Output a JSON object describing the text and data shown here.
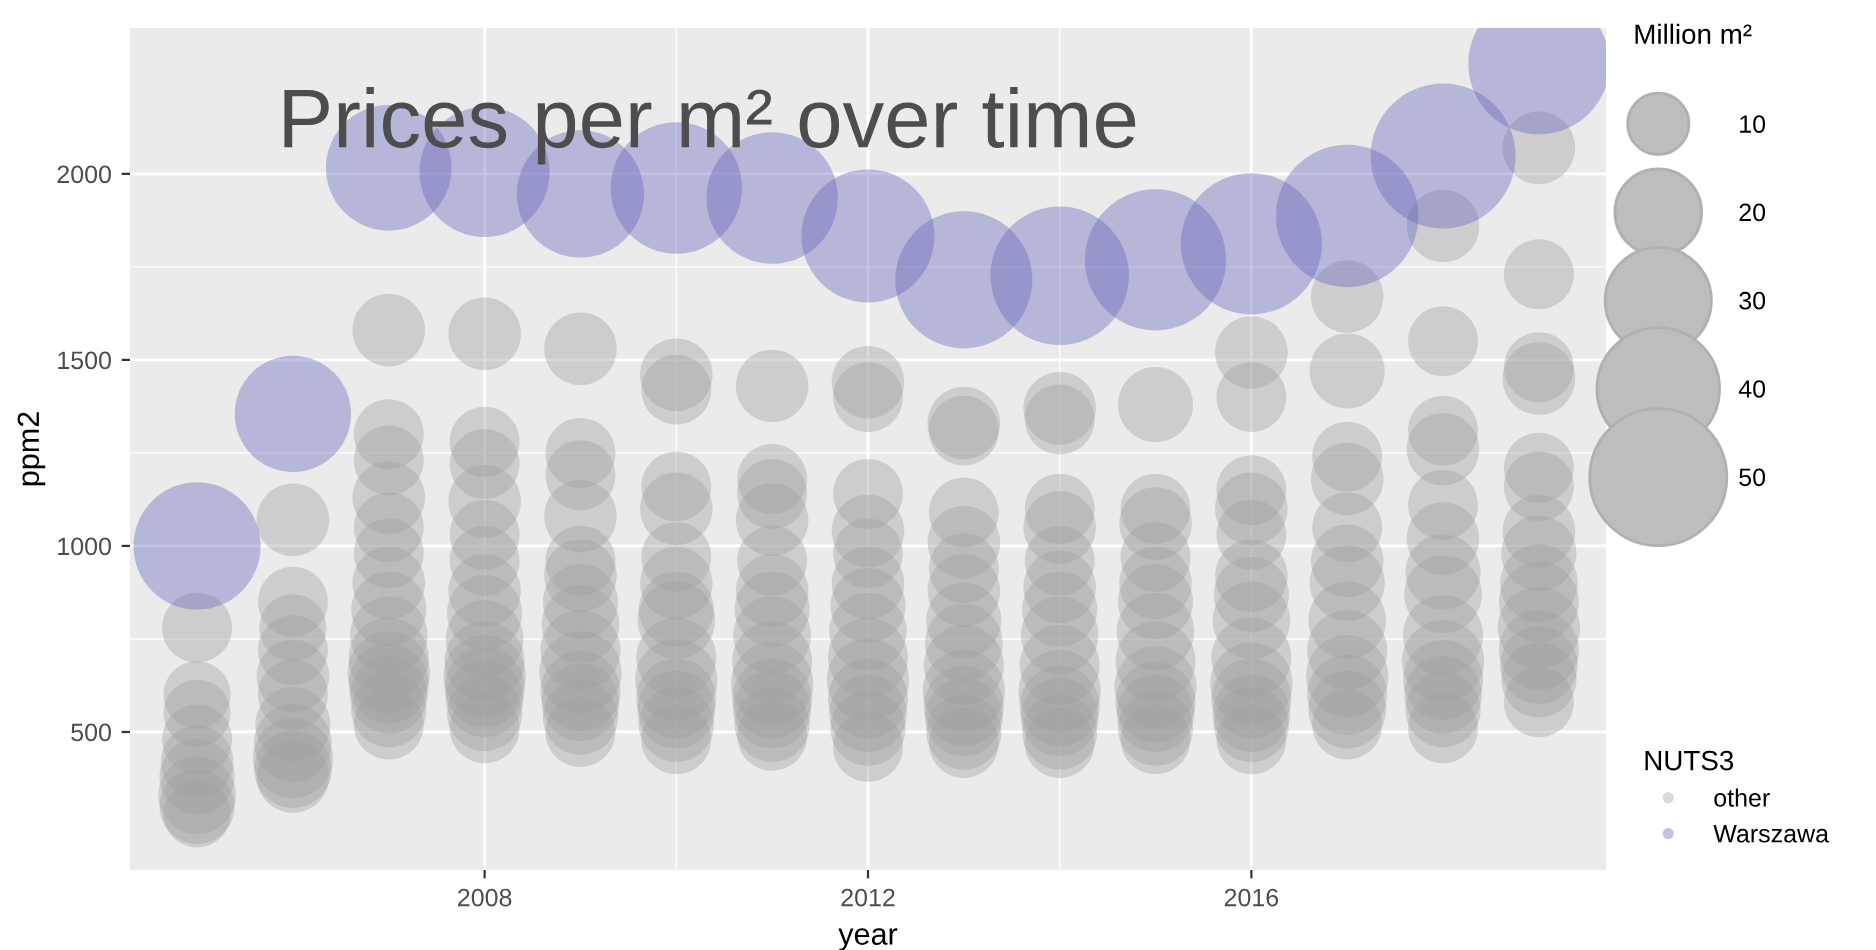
{
  "chart_data": {
    "type": "bubble",
    "title": "Prices per m² over time",
    "xlabel": "year",
    "ylabel": "ppm2",
    "legend_title": "NUTS3",
    "annotations": [
      "Million m²"
    ],
    "xlim": [
      2004.3,
      2019.7
    ],
    "xticks": [
      2008,
      2012,
      2016
    ],
    "ylim": [
      129,
      2392
    ],
    "yticks": [
      500,
      1000,
      1500,
      2000
    ],
    "grid": true,
    "legend": "right",
    "size_legend": [
      10,
      20,
      30,
      40,
      50
    ],
    "series": [
      {
        "name": "other",
        "color": "#a0a0a0",
        "x": [
          2005,
          2005,
          2005,
          2005,
          2005,
          2005,
          2005,
          2005,
          2005,
          2006,
          2006,
          2006,
          2006,
          2006,
          2006,
          2006,
          2006,
          2006,
          2006,
          2006,
          2007,
          2007,
          2007,
          2007,
          2007,
          2007,
          2007,
          2007,
          2007,
          2007,
          2007,
          2007,
          2007,
          2007,
          2007,
          2008,
          2008,
          2008,
          2008,
          2008,
          2008,
          2008,
          2008,
          2008,
          2008,
          2008,
          2008,
          2008,
          2008,
          2008,
          2009,
          2009,
          2009,
          2009,
          2009,
          2009,
          2009,
          2009,
          2009,
          2009,
          2009,
          2009,
          2009,
          2009,
          2010,
          2010,
          2010,
          2010,
          2010,
          2010,
          2010,
          2010,
          2010,
          2010,
          2010,
          2010,
          2010,
          2010,
          2011,
          2011,
          2011,
          2011,
          2011,
          2011,
          2011,
          2011,
          2011,
          2011,
          2011,
          2011,
          2011,
          2011,
          2012,
          2012,
          2012,
          2012,
          2012,
          2012,
          2012,
          2012,
          2012,
          2012,
          2012,
          2012,
          2012,
          2012,
          2013,
          2013,
          2013,
          2013,
          2013,
          2013,
          2013,
          2013,
          2013,
          2013,
          2013,
          2013,
          2013,
          2013,
          2014,
          2014,
          2014,
          2014,
          2014,
          2014,
          2014,
          2014,
          2014,
          2014,
          2014,
          2014,
          2014,
          2014,
          2015,
          2015,
          2015,
          2015,
          2015,
          2015,
          2015,
          2015,
          2015,
          2015,
          2015,
          2015,
          2015,
          2016,
          2016,
          2016,
          2016,
          2016,
          2016,
          2016,
          2016,
          2016,
          2016,
          2016,
          2016,
          2016,
          2016,
          2017,
          2017,
          2017,
          2017,
          2017,
          2017,
          2017,
          2017,
          2017,
          2017,
          2017,
          2017,
          2017,
          2018,
          2018,
          2018,
          2018,
          2018,
          2018,
          2018,
          2018,
          2018,
          2018,
          2018,
          2018,
          2018,
          2018,
          2019,
          2019,
          2019,
          2019,
          2019,
          2019,
          2019,
          2019,
          2019,
          2019,
          2019,
          2019,
          2019,
          2019,
          2019
        ],
        "values": [
          780,
          600,
          550,
          480,
          420,
          380,
          330,
          300,
          280,
          1070,
          850,
          780,
          720,
          650,
          600,
          520,
          470,
          430,
          400,
          380,
          1580,
          1300,
          1230,
          1130,
          1050,
          980,
          900,
          830,
          760,
          700,
          660,
          630,
          600,
          560,
          520,
          1570,
          1280,
          1220,
          1120,
          1030,
          960,
          880,
          820,
          750,
          690,
          650,
          620,
          590,
          550,
          510,
          1530,
          1250,
          1190,
          1080,
          960,
          920,
          850,
          790,
          720,
          660,
          610,
          580,
          540,
          500,
          1460,
          1420,
          1160,
          1100,
          970,
          900,
          830,
          800,
          700,
          640,
          590,
          560,
          520,
          480,
          1430,
          1180,
          1140,
          1070,
          960,
          880,
          830,
          760,
          690,
          630,
          590,
          560,
          520,
          490,
          1440,
          1400,
          1140,
          1040,
          980,
          900,
          840,
          770,
          700,
          640,
          590,
          550,
          510,
          460,
          1330,
          1310,
          1090,
          1010,
          940,
          880,
          800,
          740,
          680,
          610,
          570,
          540,
          500,
          470,
          1370,
          1340,
          1100,
          1050,
          960,
          890,
          830,
          760,
          680,
          610,
          570,
          540,
          500,
          470,
          1380,
          1100,
          1060,
          970,
          900,
          850,
          770,
          690,
          620,
          580,
          550,
          510,
          480,
          1520,
          1400,
          1150,
          1100,
          1030,
          920,
          870,
          800,
          700,
          630,
          590,
          550,
          520,
          480,
          1670,
          1470,
          1240,
          1180,
          1050,
          960,
          900,
          800,
          720,
          650,
          600,
          560,
          520,
          1860,
          1550,
          1310,
          1260,
          1110,
          1020,
          930,
          870,
          760,
          690,
          640,
          600,
          560,
          510,
          2070,
          1730,
          1480,
          1450,
          1210,
          1160,
          1040,
          980,
          900,
          850,
          780,
          720,
          680,
          640,
          580
        ],
        "sizes": [
          13,
          12,
          12,
          13,
          14,
          15,
          16,
          15,
          12,
          14,
          13,
          12,
          13,
          14,
          13,
          15,
          16,
          17,
          16,
          14,
          14,
          13,
          13,
          14,
          13,
          13,
          14,
          15,
          16,
          17,
          18,
          17,
          16,
          15,
          13,
          14,
          13,
          13,
          14,
          13,
          13,
          14,
          15,
          16,
          17,
          18,
          17,
          16,
          15,
          13,
          14,
          13,
          13,
          14,
          13,
          14,
          15,
          16,
          17,
          18,
          17,
          16,
          15,
          13,
          14,
          13,
          13,
          14,
          13,
          14,
          15,
          16,
          17,
          18,
          17,
          16,
          15,
          13,
          14,
          13,
          13,
          14,
          13,
          14,
          15,
          16,
          17,
          18,
          17,
          16,
          15,
          13,
          14,
          13,
          13,
          14,
          13,
          14,
          15,
          16,
          17,
          18,
          17,
          16,
          15,
          13,
          14,
          13,
          13,
          14,
          13,
          14,
          15,
          16,
          17,
          18,
          17,
          16,
          15,
          13,
          14,
          13,
          13,
          14,
          13,
          14,
          15,
          16,
          17,
          18,
          17,
          16,
          15,
          13,
          15,
          13,
          14,
          13,
          14,
          15,
          16,
          17,
          18,
          17,
          16,
          15,
          13,
          14,
          13,
          13,
          14,
          13,
          14,
          15,
          16,
          17,
          18,
          17,
          16,
          15,
          13,
          14,
          15,
          13,
          14,
          13,
          14,
          15,
          16,
          17,
          18,
          17,
          16,
          13,
          14,
          13,
          13,
          14,
          13,
          14,
          15,
          16,
          17,
          18,
          17,
          16,
          15,
          13,
          14,
          13,
          13,
          14,
          13,
          13,
          14,
          15,
          16,
          17,
          18,
          17,
          16,
          15,
          13
        ]
      },
      {
        "name": "Warszawa",
        "color": "#6666bb",
        "x": [
          2005,
          2006,
          2007,
          2008,
          2009,
          2010,
          2011,
          2012,
          2013,
          2014,
          2015,
          2016,
          2017,
          2018,
          2019
        ],
        "values": [
          1000,
          1355,
          2016,
          2005,
          1946,
          1962,
          1935,
          1833,
          1715,
          1726,
          1769,
          1812,
          1887,
          2048,
          2296
        ],
        "sizes": [
          43,
          36,
          42,
          45,
          43,
          46,
          46,
          47,
          50,
          51,
          53,
          53,
          54,
          56,
          53
        ]
      }
    ]
  }
}
